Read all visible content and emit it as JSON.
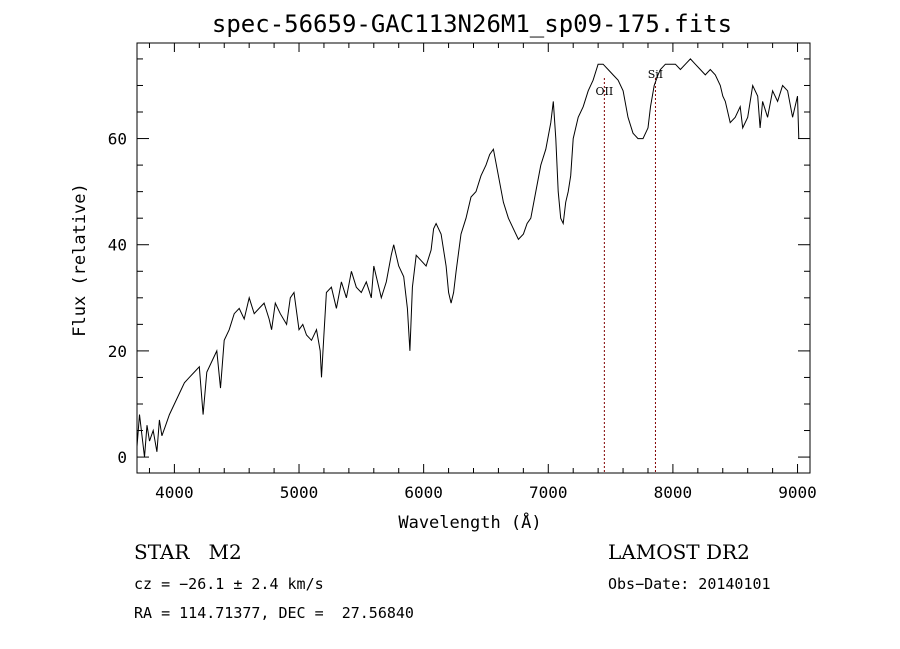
{
  "chart_data": {
    "type": "line",
    "title": "spec-56659-GAC113N26M1_sp09-175.fits",
    "xlabel": "Wavelength (Å)",
    "ylabel": "Flux (relative)",
    "xlim": [
      3700,
      9100
    ],
    "ylim": [
      -3,
      78
    ],
    "xticks": [
      4000,
      5000,
      6000,
      7000,
      8000,
      9000
    ],
    "yticks": [
      0,
      20,
      40,
      60
    ],
    "line_color": "#000000",
    "marker_color": "#800000",
    "series": [
      {
        "x": [
          3700,
          3720,
          3740,
          3760,
          3780,
          3800,
          3830,
          3860,
          3880,
          3900,
          3930,
          3960,
          4000,
          4040,
          4080,
          4120,
          4160,
          4200,
          4230,
          4260,
          4300,
          4340,
          4370,
          4400,
          4440,
          4480,
          4520,
          4560,
          4600,
          4640,
          4680,
          4720,
          4760,
          4780,
          4810,
          4850,
          4900,
          4930,
          4960,
          5000,
          5030,
          5060,
          5100,
          5140,
          5170,
          5180,
          5200,
          5220,
          5260,
          5300,
          5340,
          5380,
          5420,
          5460,
          5500,
          5540,
          5580,
          5600,
          5620,
          5660,
          5700,
          5740,
          5760,
          5800,
          5840,
          5870,
          5890,
          5910,
          5940,
          5980,
          6020,
          6060,
          6080,
          6100,
          6140,
          6180,
          6200,
          6220,
          6240,
          6260,
          6300,
          6340,
          6380,
          6420,
          6460,
          6500,
          6530,
          6560,
          6600,
          6640,
          6680,
          6720,
          6760,
          6800,
          6830,
          6860,
          6900,
          6940,
          6980,
          7020,
          7040,
          7060,
          7080,
          7100,
          7120,
          7140,
          7160,
          7180,
          7200,
          7240,
          7280,
          7320,
          7360,
          7400,
          7440,
          7480,
          7520,
          7560,
          7600,
          7640,
          7680,
          7720,
          7760,
          7800,
          7820,
          7850,
          7880,
          7900,
          7940,
          7980,
          8020,
          8060,
          8100,
          8140,
          8180,
          8220,
          8260,
          8300,
          8340,
          8380,
          8400,
          8420,
          8460,
          8500,
          8540,
          8560,
          8600,
          8640,
          8680,
          8700,
          8720,
          8760,
          8800,
          8840,
          8880,
          8920,
          8960,
          9000,
          9010
        ],
        "y": [
          2,
          8,
          4,
          0,
          6,
          3,
          5,
          1,
          7,
          4,
          6,
          8,
          10,
          12,
          14,
          15,
          16,
          17,
          8,
          16,
          18,
          20,
          13,
          22,
          24,
          27,
          28,
          26,
          30,
          27,
          28,
          29,
          26,
          24,
          29,
          27,
          25,
          30,
          31,
          24,
          25,
          23,
          22,
          24,
          20,
          15,
          23,
          31,
          32,
          28,
          33,
          30,
          35,
          32,
          31,
          33,
          30,
          36,
          34,
          30,
          33,
          38,
          40,
          36,
          34,
          28,
          20,
          32,
          38,
          37,
          36,
          39,
          43,
          44,
          42,
          36,
          31,
          29,
          31,
          35,
          42,
          45,
          49,
          50,
          53,
          55,
          57,
          58,
          53,
          48,
          45,
          43,
          41,
          42,
          44,
          45,
          50,
          55,
          58,
          63,
          67,
          60,
          50,
          45,
          44,
          48,
          50,
          53,
          60,
          64,
          66,
          69,
          71,
          74,
          74,
          73,
          72,
          71,
          69,
          64,
          61,
          60,
          60,
          62,
          66,
          70,
          72,
          73,
          74,
          74,
          74,
          73,
          74,
          75,
          74,
          73,
          72,
          73,
          72,
          70,
          68,
          67,
          63,
          64,
          66,
          62,
          64,
          70,
          68,
          62,
          67,
          64,
          69,
          67,
          70,
          69,
          64,
          68,
          60
        ]
      }
    ],
    "annotations": [
      {
        "label": "OII",
        "x": 7450
      },
      {
        "label": "SiI",
        "x": 7860
      }
    ]
  },
  "footer": {
    "left_title": "STAR   M2",
    "cz": "cz = −26.1 ± 2.4 km/s",
    "radec": "RA = 114.71377, DEC =  27.56840",
    "survey": "LAMOST DR2",
    "obs_date": "Obs−Date: 20140101"
  }
}
